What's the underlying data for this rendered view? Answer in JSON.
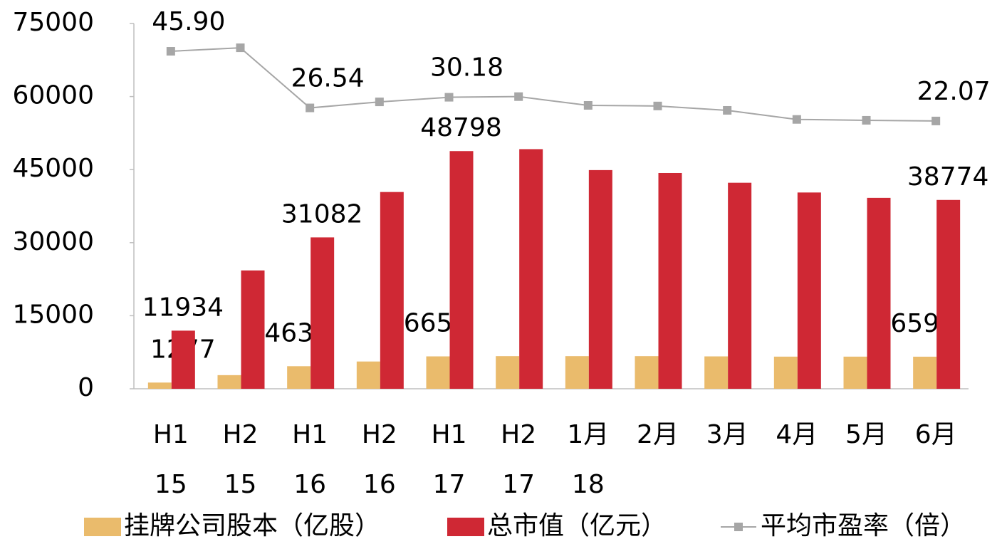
{
  "chart_data": {
    "type": "bar_line",
    "categories": [
      [
        "H1",
        "15"
      ],
      [
        "H2",
        "15"
      ],
      [
        "H1",
        "16"
      ],
      [
        "H2",
        "16"
      ],
      [
        "H1",
        "17"
      ],
      [
        "H2",
        "17"
      ],
      [
        "1月",
        "18"
      ],
      [
        "2月"
      ],
      [
        "3月"
      ],
      [
        "4月"
      ],
      [
        "5月"
      ],
      [
        "6月"
      ]
    ],
    "series": [
      {
        "name": "挂牌公司股本（亿股）",
        "color": "#eabb6c",
        "type": "bar",
        "values": [
          1277,
          2800,
          4635,
          5600,
          6651,
          6700,
          6700,
          6700,
          6650,
          6600,
          6600,
          6590
        ],
        "value_labels": [
          "1277",
          null,
          "4635",
          null,
          "6651",
          null,
          null,
          null,
          null,
          null,
          null,
          "6590"
        ]
      },
      {
        "name": "总市值（亿元）",
        "color": "#cf2834",
        "type": "bar",
        "values": [
          11934,
          24300,
          31082,
          40400,
          48798,
          49200,
          44900,
          44300,
          42300,
          40300,
          39200,
          38774
        ],
        "value_labels": [
          "11934",
          null,
          "31082",
          null,
          "48798",
          null,
          null,
          null,
          null,
          null,
          null,
          "38774"
        ]
      },
      {
        "name": "平均市盈率（倍）",
        "color": "#a6a6a6",
        "type": "line",
        "axis": "y2",
        "values": [
          45.9,
          47.1,
          26.54,
          28.6,
          30.18,
          30.4,
          27.4,
          27.2,
          25.7,
          22.6,
          22.3,
          22.07
        ],
        "value_labels": [
          "45.90",
          null,
          "26.54",
          null,
          "30.18",
          null,
          null,
          null,
          null,
          null,
          null,
          "22.07"
        ]
      }
    ],
    "ylim": [
      0,
      75000
    ],
    "yticks": [
      0,
      15000,
      30000,
      45000,
      60000,
      75000
    ],
    "y2lim": [
      -69.5,
      55.4
    ]
  }
}
